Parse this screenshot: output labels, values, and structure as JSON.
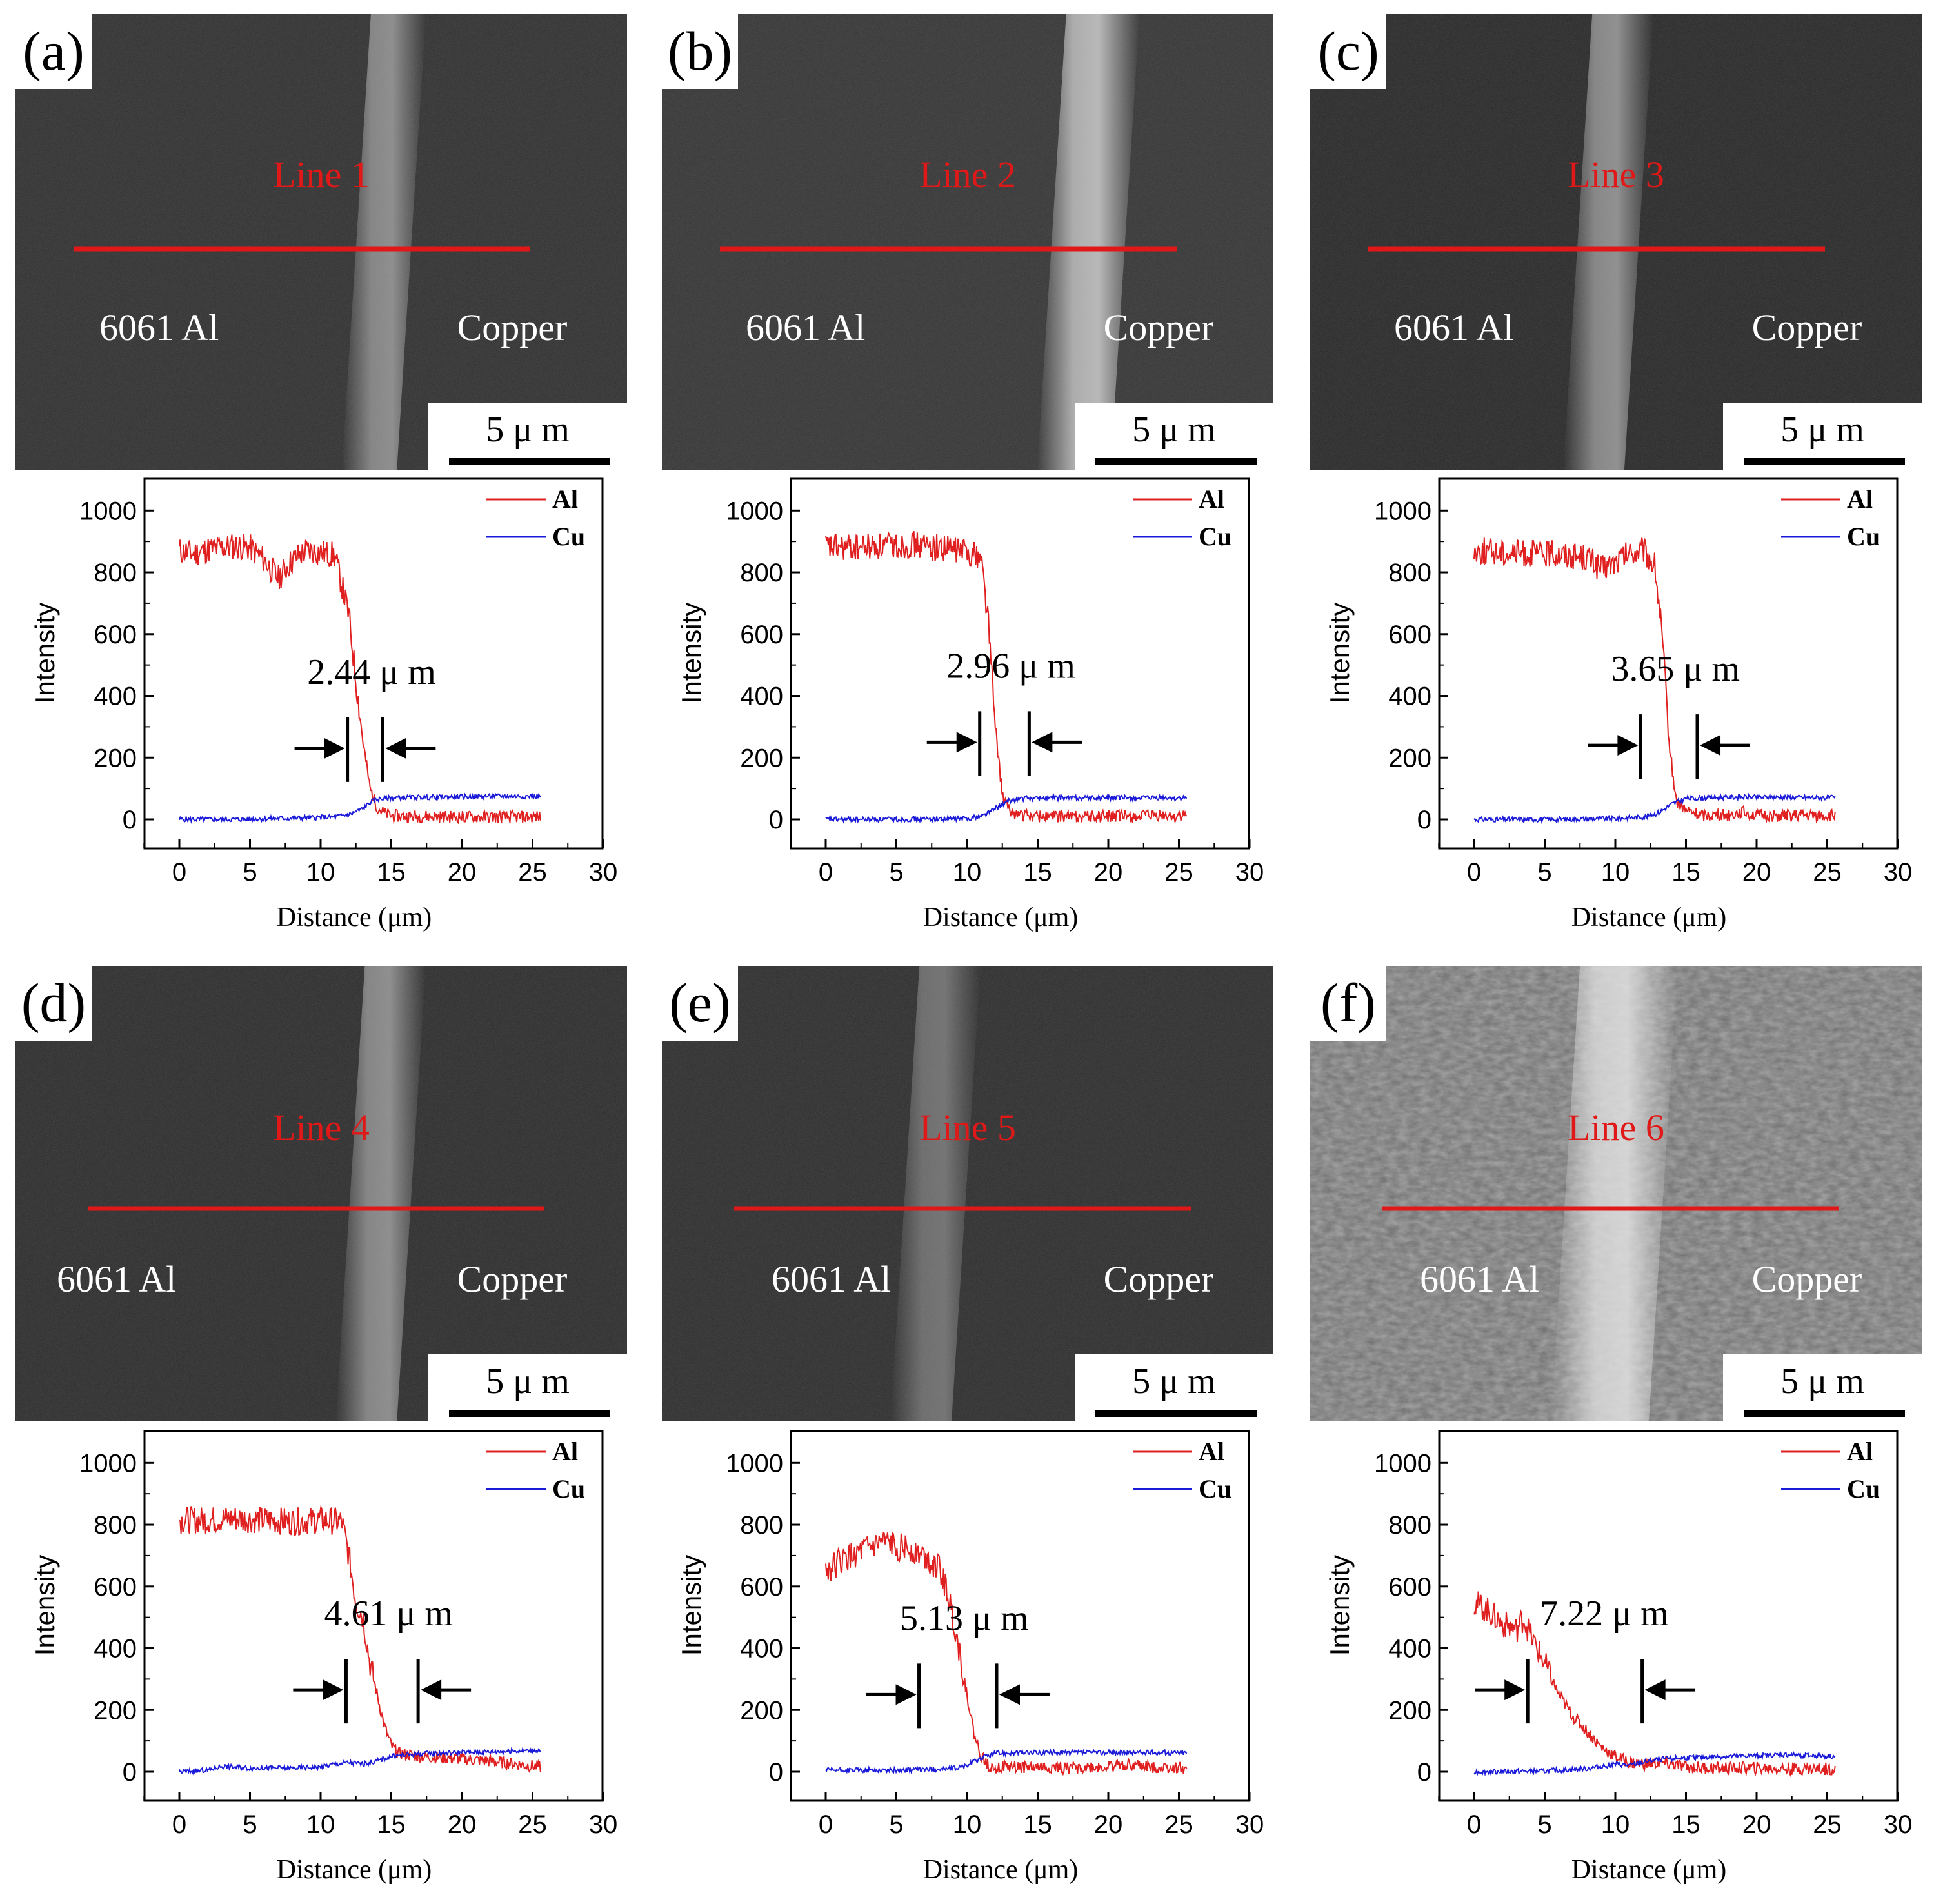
{
  "figure": {
    "colors": {
      "al_line": "#e02020",
      "cu_line": "#1a1ad8",
      "scan_line": "#e01818",
      "label_red": "#e01818",
      "sem_text": "#ffffff",
      "axis": "#000000"
    }
  },
  "chart_data": [
    {
      "panel": "(a)",
      "type": "line",
      "sem_line_label": "Line 1",
      "left_label": "6061 Al",
      "right_label": "Copper",
      "scale_bar": "5 μ m",
      "annotation": "2.44 μ m",
      "xlabel": "Distance (μm)",
      "ylabel": "Intensity",
      "xlim": [
        -2.5,
        30
      ],
      "ylim": [
        -110,
        1100
      ],
      "xticks": [
        "0",
        "5",
        "10",
        "15",
        "20",
        "25",
        "30"
      ],
      "yticks": [
        "0",
        "200",
        "400",
        "600",
        "800",
        "1000"
      ],
      "legend": [
        "Al",
        "Cu"
      ],
      "width_um": 2.44,
      "arrow_left_x": 11.9,
      "arrow_right_x": 14.4,
      "arrow_y": 230,
      "al": {
        "x": [
          0,
          1,
          2,
          3,
          4,
          5,
          6,
          7,
          8,
          9,
          10,
          11,
          12,
          12.5,
          13,
          13.5,
          14,
          14.5,
          15,
          16,
          18,
          20,
          22,
          24,
          25.6
        ],
        "y": [
          870,
          860,
          875,
          880,
          885,
          880,
          840,
          780,
          840,
          870,
          865,
          855,
          660,
          450,
          250,
          100,
          40,
          20,
          12,
          10,
          10,
          8,
          8,
          8,
          8
        ]
      },
      "cu": {
        "x": [
          0,
          4,
          8,
          11,
          12,
          13,
          13.5,
          14,
          15,
          18,
          22,
          25.6
        ],
        "y": [
          0,
          0,
          4,
          8,
          15,
          35,
          55,
          65,
          70,
          72,
          75,
          75
        ]
      }
    },
    {
      "panel": "(b)",
      "type": "line",
      "sem_line_label": "Line 2",
      "left_label": "6061 Al",
      "right_label": "Copper",
      "scale_bar": "5 μ m",
      "annotation": "2.96 μ m",
      "xlabel": "Distance (μm)",
      "ylabel": "Intensity",
      "xlim": [
        -2.5,
        30
      ],
      "ylim": [
        -110,
        1100
      ],
      "xticks": [
        "0",
        "5",
        "10",
        "15",
        "20",
        "25",
        "30"
      ],
      "yticks": [
        "0",
        "200",
        "400",
        "600",
        "800",
        "1000"
      ],
      "legend": [
        "Al",
        "Cu"
      ],
      "width_um": 2.96,
      "arrow_left_x": 10.9,
      "arrow_right_x": 14.4,
      "arrow_y": 250,
      "al": {
        "x": [
          0,
          2,
          4,
          6,
          8,
          10,
          11,
          11.5,
          12,
          12.5,
          13,
          14,
          16,
          20,
          25.6
        ],
        "y": [
          880,
          880,
          885,
          890,
          880,
          870,
          850,
          650,
          300,
          80,
          25,
          12,
          10,
          10,
          10
        ]
      },
      "cu": {
        "x": [
          0,
          5,
          10,
          11,
          12,
          13,
          14,
          16,
          20,
          25.6
        ],
        "y": [
          0,
          0,
          3,
          10,
          35,
          60,
          68,
          70,
          70,
          68
        ]
      }
    },
    {
      "panel": "(c)",
      "type": "line",
      "sem_line_label": "Line 3",
      "left_label": "6061 Al",
      "right_label": "Copper",
      "scale_bar": "5 μ m",
      "annotation": "3.65 μ m",
      "xlabel": "Distance (μm)",
      "ylabel": "Intensity",
      "xlim": [
        -2.5,
        30
      ],
      "ylim": [
        -110,
        1100
      ],
      "xticks": [
        "0",
        "5",
        "10",
        "15",
        "20",
        "25",
        "30"
      ],
      "yticks": [
        "0",
        "200",
        "400",
        "600",
        "800",
        "1000"
      ],
      "legend": [
        "Al",
        "Cu"
      ],
      "width_um": 3.65,
      "arrow_left_x": 11.8,
      "arrow_right_x": 15.8,
      "arrow_y": 240,
      "al": {
        "x": [
          0,
          2,
          4,
          6,
          8,
          9,
          10,
          11,
          12,
          12.8,
          13.3,
          13.8,
          14.3,
          15,
          16,
          18,
          19,
          20,
          25.6
        ],
        "y": [
          870,
          865,
          860,
          860,
          850,
          810,
          830,
          860,
          870,
          820,
          600,
          250,
          60,
          30,
          15,
          15,
          25,
          12,
          12
        ]
      },
      "cu": {
        "x": [
          0,
          5,
          10,
          12,
          13,
          14,
          15,
          18,
          22,
          25.6
        ],
        "y": [
          0,
          0,
          3,
          8,
          20,
          50,
          68,
          72,
          72,
          70
        ]
      }
    },
    {
      "panel": "(d)",
      "type": "line",
      "sem_line_label": "Line 4",
      "left_label": "6061 Al",
      "right_label": "Copper",
      "scale_bar": "5 μ m",
      "annotation": "4.61 μ m",
      "xlabel": "Distance (μm)",
      "ylabel": "Intensity",
      "xlim": [
        -2.5,
        30
      ],
      "ylim": [
        -110,
        1100
      ],
      "xticks": [
        "0",
        "5",
        "10",
        "15",
        "20",
        "25",
        "30"
      ],
      "yticks": [
        "0",
        "200",
        "400",
        "600",
        "800",
        "1000"
      ],
      "legend": [
        "Al",
        "Cu"
      ],
      "width_um": 4.61,
      "arrow_left_x": 11.8,
      "arrow_right_x": 16.9,
      "arrow_y": 265,
      "al": {
        "x": [
          0,
          2,
          4,
          6,
          8,
          10,
          11.5,
          12,
          12.5,
          13,
          13.5,
          14,
          14.5,
          15,
          15.5,
          17,
          19,
          21,
          23,
          25.6
        ],
        "y": [
          815,
          815,
          820,
          815,
          810,
          815,
          810,
          700,
          550,
          500,
          350,
          250,
          150,
          85,
          60,
          50,
          45,
          38,
          30,
          15
        ]
      },
      "cu": {
        "x": [
          0,
          2,
          3,
          5,
          8,
          10,
          11,
          12,
          13,
          14,
          15,
          16,
          18,
          22,
          25.6
        ],
        "y": [
          0,
          5,
          18,
          12,
          12,
          15,
          25,
          30,
          25,
          35,
          50,
          55,
          60,
          65,
          70
        ]
      }
    },
    {
      "panel": "(e)",
      "type": "line",
      "sem_line_label": "Line 5",
      "left_label": "6061 Al",
      "right_label": "Copper",
      "scale_bar": "5 μ m",
      "annotation": "5.13 μ m",
      "xlabel": "Distance (μm)",
      "ylabel": "Intensity",
      "xlim": [
        -2.5,
        30
      ],
      "ylim": [
        -110,
        1100
      ],
      "xticks": [
        "0",
        "5",
        "10",
        "15",
        "20",
        "25",
        "30"
      ],
      "yticks": [
        "0",
        "200",
        "400",
        "600",
        "800",
        "1000"
      ],
      "legend": [
        "Al",
        "Cu"
      ],
      "width_um": 5.13,
      "arrow_left_x": 6.6,
      "arrow_right_x": 12.1,
      "arrow_y": 250,
      "al": {
        "x": [
          0,
          1,
          2,
          3,
          4,
          5,
          6,
          7,
          8,
          8.5,
          9,
          9.5,
          10,
          10.5,
          11,
          11.5,
          12,
          14,
          17,
          20,
          21,
          23,
          25.6
        ],
        "y": [
          650,
          680,
          700,
          720,
          740,
          730,
          720,
          700,
          660,
          600,
          500,
          380,
          250,
          120,
          50,
          20,
          15,
          15,
          12,
          15,
          25,
          15,
          12
        ]
      },
      "cu": {
        "x": [
          0,
          5,
          9,
          10,
          11,
          12,
          14,
          18,
          22,
          25.6
        ],
        "y": [
          5,
          5,
          10,
          20,
          45,
          60,
          62,
          62,
          62,
          62
        ]
      }
    },
    {
      "panel": "(f)",
      "type": "line",
      "sem_line_label": "Line 6",
      "left_label": "6061 Al",
      "right_label": "Copper",
      "scale_bar": "5 μ m",
      "annotation": "7.22 μ m",
      "xlabel": "Distance (μm)",
      "ylabel": "Intensity",
      "xlim": [
        -2.5,
        30
      ],
      "ylim": [
        -110,
        1100
      ],
      "xticks": [
        "0",
        "5",
        "10",
        "15",
        "20",
        "25",
        "30"
      ],
      "yticks": [
        "0",
        "200",
        "400",
        "600",
        "800",
        "1000"
      ],
      "legend": [
        "Al",
        "Cu"
      ],
      "width_um": 7.22,
      "arrow_left_x": 3.8,
      "arrow_right_x": 11.9,
      "arrow_y": 265,
      "al": {
        "x": [
          0,
          1,
          2,
          3,
          3.5,
          4,
          5,
          6,
          7,
          8,
          9,
          10,
          11,
          12,
          13,
          14,
          15,
          17,
          20,
          22,
          25.6
        ],
        "y": [
          550,
          520,
          480,
          460,
          500,
          440,
          350,
          250,
          180,
          130,
          80,
          50,
          30,
          25,
          28,
          25,
          15,
          12,
          12,
          10,
          10
        ]
      },
      "cu": {
        "x": [
          0,
          5,
          8,
          10,
          11,
          12,
          13,
          15,
          18,
          20,
          22,
          25.6
        ],
        "y": [
          0,
          2,
          10,
          25,
          20,
          30,
          40,
          45,
          50,
          52,
          55,
          50
        ]
      }
    }
  ]
}
